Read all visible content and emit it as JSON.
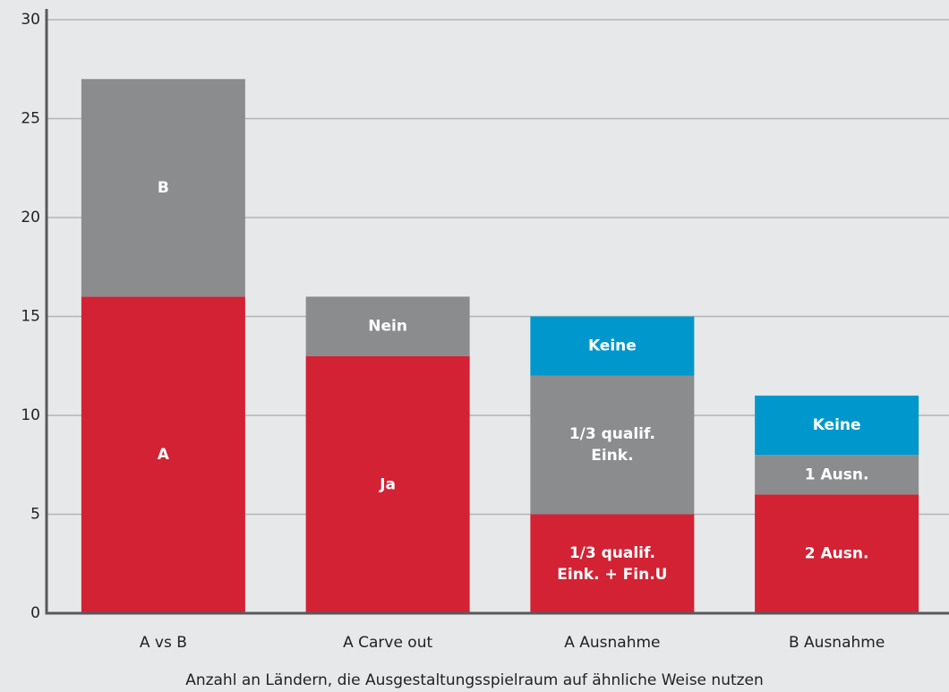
{
  "chart_data": {
    "type": "stacked_bar",
    "categories": [
      "A vs B",
      "A Carve out",
      "A Ausnahme",
      "B Ausnahme"
    ],
    "series": [
      {
        "color": "#d22234",
        "values": [
          16,
          13,
          5,
          6
        ],
        "labels": [
          [
            "A"
          ],
          [
            "Ja"
          ],
          [
            "1/3 qualif.",
            "Eink. + Fin.U"
          ],
          [
            "2 Ausn."
          ]
        ]
      },
      {
        "color": "#8b8c8e",
        "values": [
          11,
          3,
          7,
          2
        ],
        "labels": [
          [
            "B"
          ],
          [
            "Nein"
          ],
          [
            "1/3 qualif.",
            "Eink."
          ],
          [
            "1 Ausn."
          ]
        ]
      },
      {
        "color": "#0098cc",
        "values": [
          null,
          null,
          3,
          3
        ],
        "labels": [
          null,
          null,
          [
            "Keine"
          ],
          [
            "Keine"
          ]
        ]
      }
    ],
    "xlabel": "Anzahl an Ländern, die Ausgestaltungsspielraum auf ähnliche Weise nutzen",
    "ylim": [
      0,
      30
    ],
    "yticks": [
      0,
      5,
      10,
      15,
      20,
      25,
      30
    ],
    "grid": true
  }
}
